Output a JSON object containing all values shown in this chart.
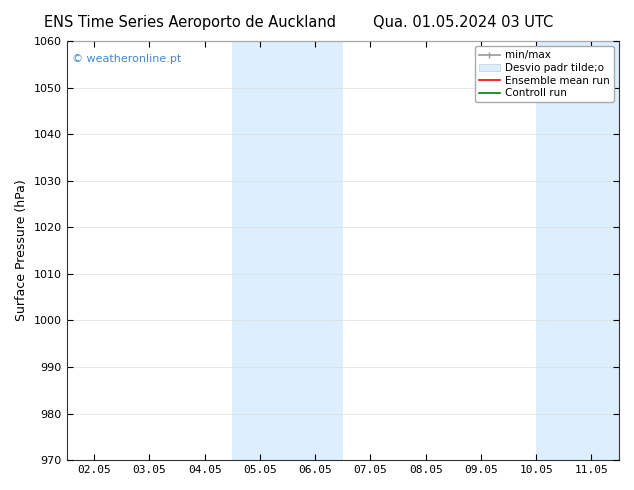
{
  "title_left": "ENS Time Series Aeroporto de Auckland",
  "title_right": "Qua. 01.05.2024 03 UTC",
  "ylabel": "Surface Pressure (hPa)",
  "ylim": [
    970,
    1060
  ],
  "yticks": [
    970,
    980,
    990,
    1000,
    1010,
    1020,
    1030,
    1040,
    1050,
    1060
  ],
  "xtick_labels": [
    "02.05",
    "03.05",
    "04.05",
    "05.05",
    "06.05",
    "07.05",
    "08.05",
    "09.05",
    "10.05",
    "11.05"
  ],
  "xtick_positions": [
    0,
    1,
    2,
    3,
    4,
    5,
    6,
    7,
    8,
    9
  ],
  "shaded_regions": [
    {
      "xstart": 2.5,
      "xend": 4.5,
      "color": "#ddeeff"
    },
    {
      "xstart": 8.0,
      "xend": 9.5,
      "color": "#ddeeff"
    }
  ],
  "watermark": "© weatheronline.pt",
  "watermark_color": "#4488cc",
  "legend_labels": [
    "min/max",
    "Desvio padr tilde;o",
    "Ensemble mean run",
    "Controll run"
  ],
  "legend_colors": [
    "#aaaaaa",
    "#ddeeff",
    "red",
    "green"
  ],
  "bg_color": "#ffffff",
  "plot_bg": "#ffffff",
  "title_fontsize": 10.5,
  "ylabel_fontsize": 9,
  "tick_fontsize": 8,
  "watermark_fontsize": 8,
  "legend_fontsize": 7.5
}
